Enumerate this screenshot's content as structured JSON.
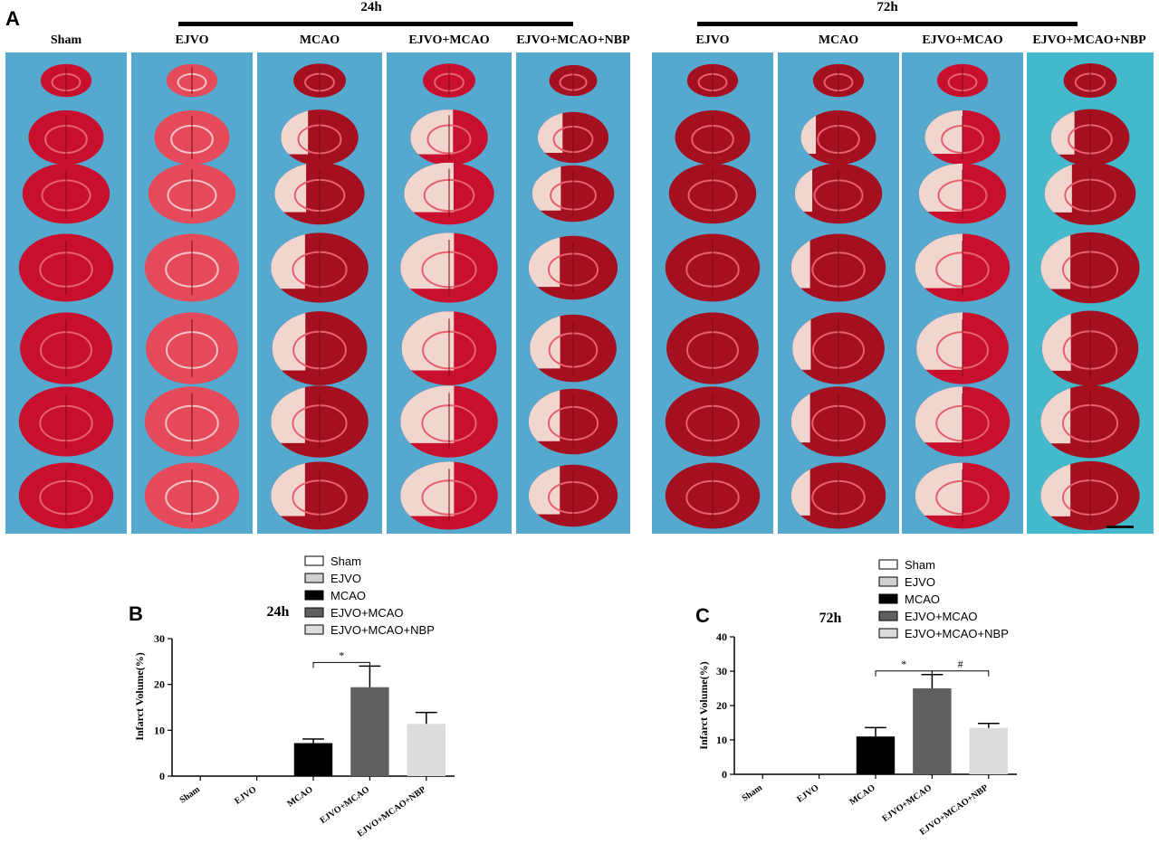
{
  "panels": {
    "a": "A",
    "b": "B",
    "c": "C"
  },
  "tc_panel": {
    "time_labels": [
      "24h",
      "72h"
    ],
    "group_labels": [
      "Sham",
      "EJVO",
      "MCAO",
      "EJVO+MCAO",
      "EJVO+MCAO+NBP",
      "EJVO",
      "MCAO",
      "EJVO+MCAO",
      "EJVO+MCAO+NBP"
    ]
  },
  "colors": {
    "Sham": "#ffffff",
    "EJVO": "#d0d0d0",
    "MCAO": "#000000",
    "EJVO+MCAO": "#606060",
    "EJVO+MCAO+NBP": "#dcdcdc",
    "strip_blue": "#55a9cf",
    "tissue_red": "#c8102e",
    "infarct_pale": "#f1d6cf"
  },
  "chart_data": [
    {
      "type": "bar",
      "title": "24h",
      "ylabel": "Infarct Volume(%)",
      "xlabel": "",
      "categories": [
        "Sham",
        "EJVO",
        "MCAO",
        "EJVO+MCAO",
        "EJVO+MCAO+NBP"
      ],
      "values": [
        0,
        0,
        7.2,
        19.4,
        11.4
      ],
      "errors": [
        0,
        0,
        0.9,
        4.6,
        2.5
      ],
      "ylim": [
        0,
        30
      ],
      "yticks": [
        "0",
        "10",
        "20",
        "30"
      ],
      "legend": [
        "Sham",
        "EJVO",
        "MCAO",
        "EJVO+MCAO",
        "EJVO+MCAO+NBP"
      ],
      "legend_position": "top",
      "significance": [
        {
          "from": 2,
          "to": 3,
          "label": "*"
        }
      ]
    },
    {
      "type": "bar",
      "title": "72h",
      "ylabel": "Infarct Volume(%)",
      "xlabel": "",
      "categories": [
        "Sham",
        "EJVO",
        "MCAO",
        "EJVO+MCAO",
        "EJVO+MCAO+NBP"
      ],
      "values": [
        0,
        0,
        11.0,
        25.0,
        13.5
      ],
      "errors": [
        0,
        0,
        2.6,
        4.0,
        1.3
      ],
      "ylim": [
        0,
        40
      ],
      "yticks": [
        "0",
        "10",
        "20",
        "30",
        "40"
      ],
      "legend": [
        "Sham",
        "EJVO",
        "MCAO",
        "EJVO+MCAO",
        "EJVO+MCAO+NBP"
      ],
      "legend_position": "top",
      "significance": [
        {
          "from": 2,
          "to": 3,
          "label": "*"
        },
        {
          "from": 3,
          "to": 4,
          "label": "#"
        }
      ]
    }
  ]
}
